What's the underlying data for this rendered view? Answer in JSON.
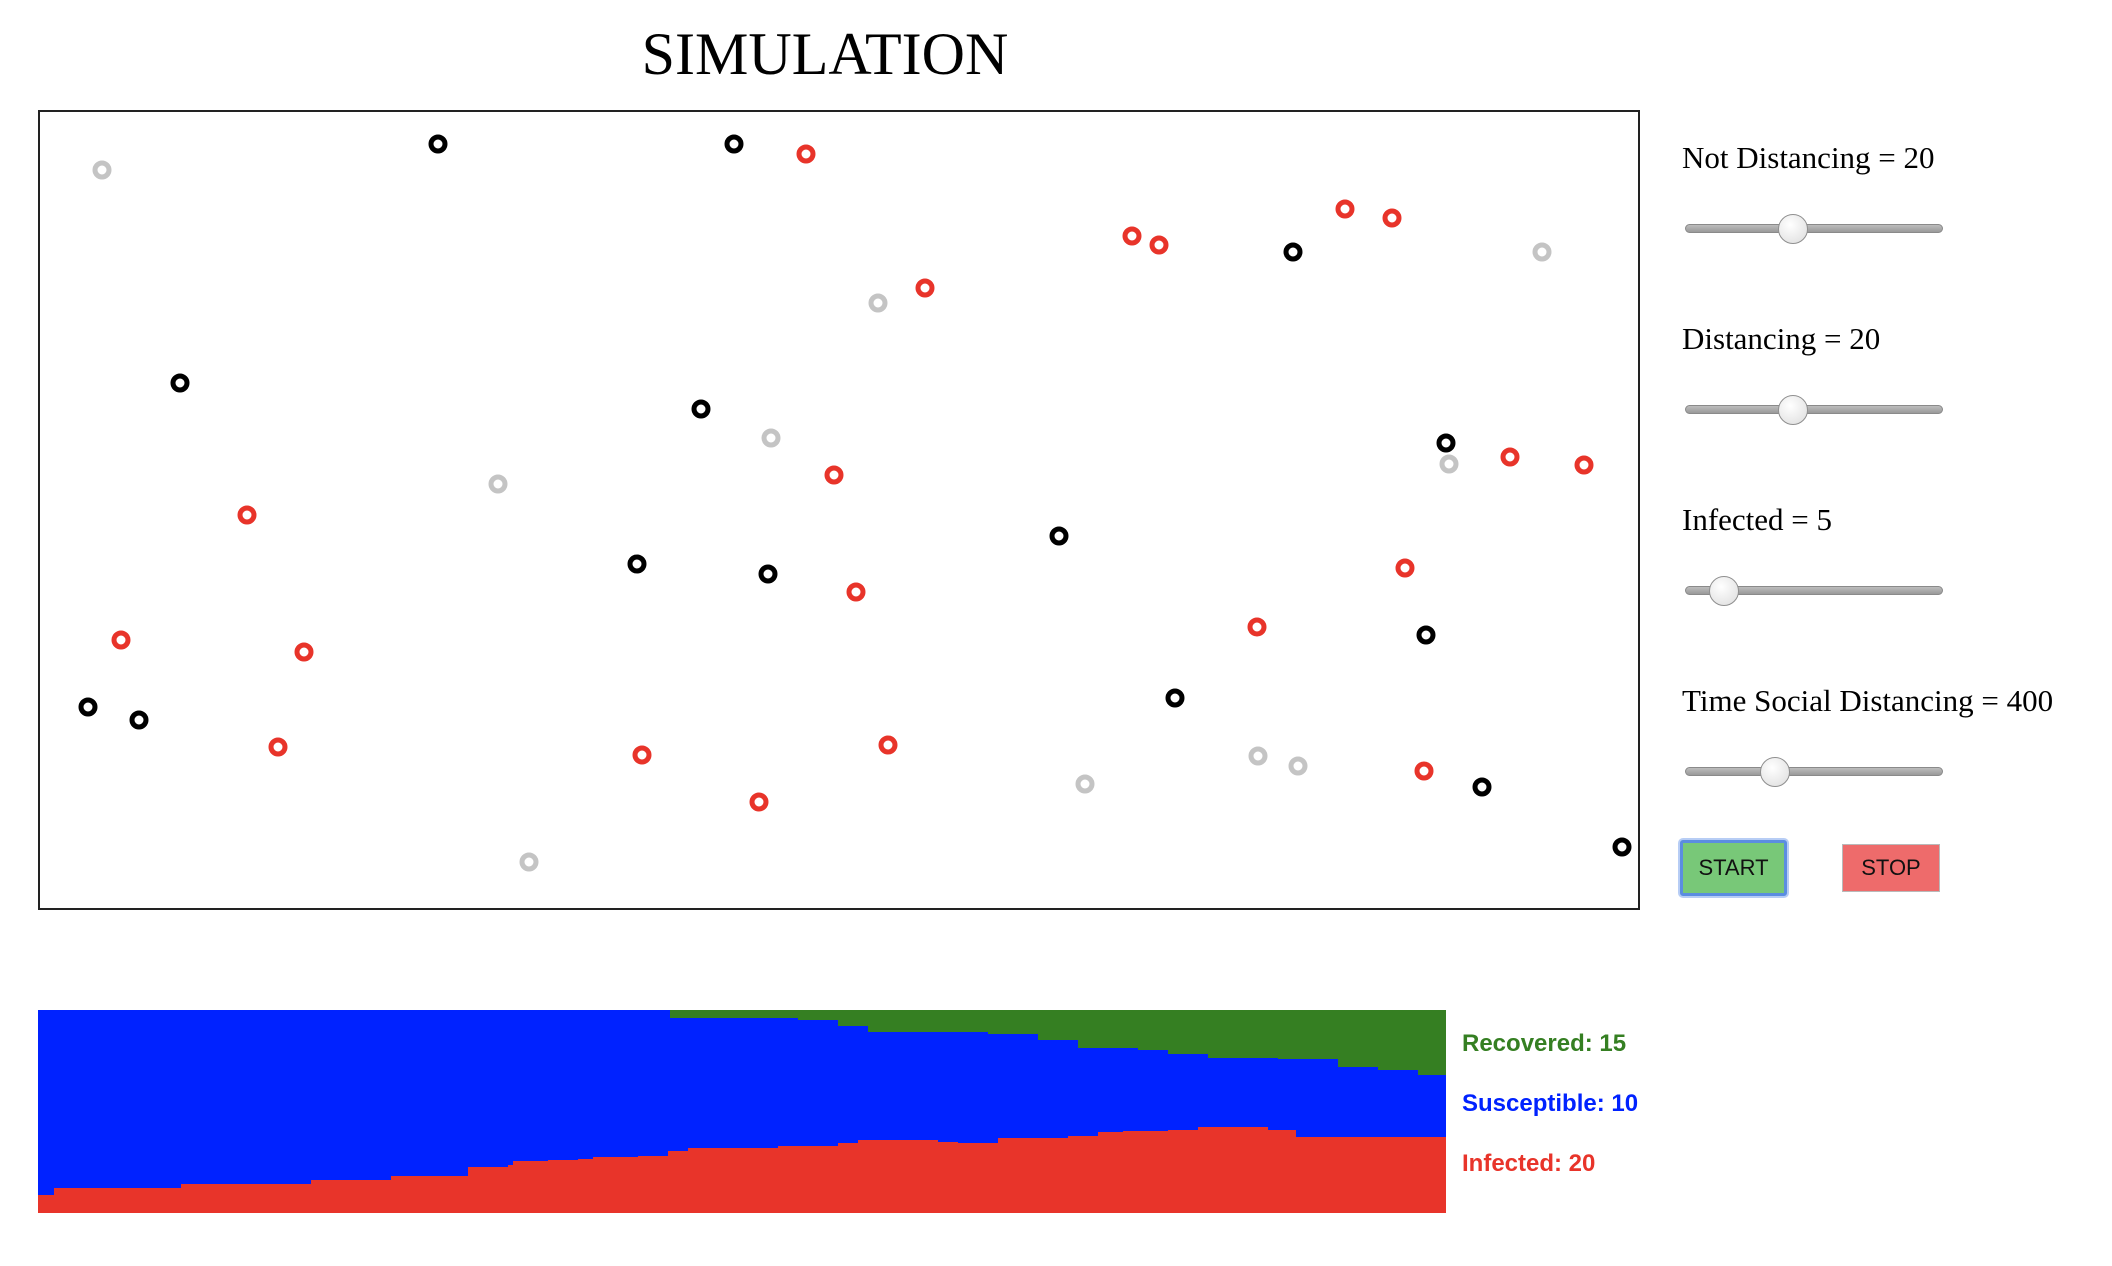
{
  "title": "SIMULATION",
  "controls": [
    {
      "label": "Not Distancing = 20",
      "position": 0.42
    },
    {
      "label": "Distancing = 20",
      "position": 0.42
    },
    {
      "label": "Infected = 5",
      "position": 0.15
    },
    {
      "label": "Time Social Distancing = 400",
      "position": 0.35
    }
  ],
  "buttons": {
    "start": "START",
    "stop": "STOP"
  },
  "colors": {
    "infected": "#e8342a",
    "susceptible": "#0022ff",
    "recovered": "#357f22",
    "not_distancing": "#000000",
    "recovered_dot": "#c4c4c4",
    "start_button": "#78c878",
    "stop_button": "#ee6b6b"
  },
  "legend": {
    "recovered": "Recovered: 15",
    "susceptible": "Susceptible: 10",
    "infected": "Infected: 20"
  }
}
